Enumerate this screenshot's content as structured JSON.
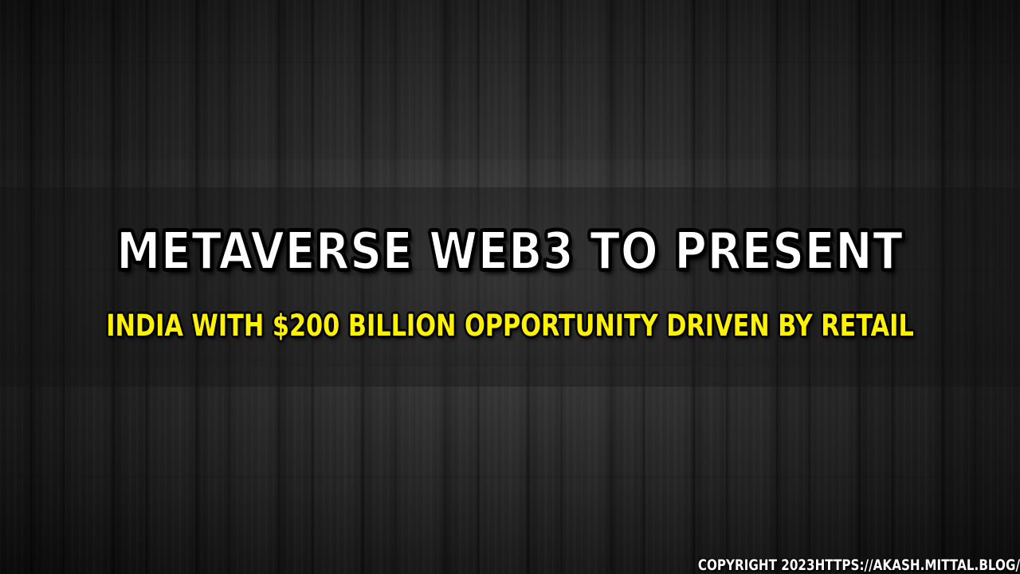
{
  "headline": {
    "line1": "METAVERSE WEB3 TO PRESENT",
    "line2": "INDIA WITH $200 BILLION OPPORTUNITY DRIVEN BY RETAIL"
  },
  "footer": {
    "copyright": "COPYRIGHT 2023HTTPS://AKASH.MITTAL.BLOG/"
  },
  "colors": {
    "title": "#ffffff",
    "subtitle": "#fff200",
    "background": "#2a2a2a"
  }
}
